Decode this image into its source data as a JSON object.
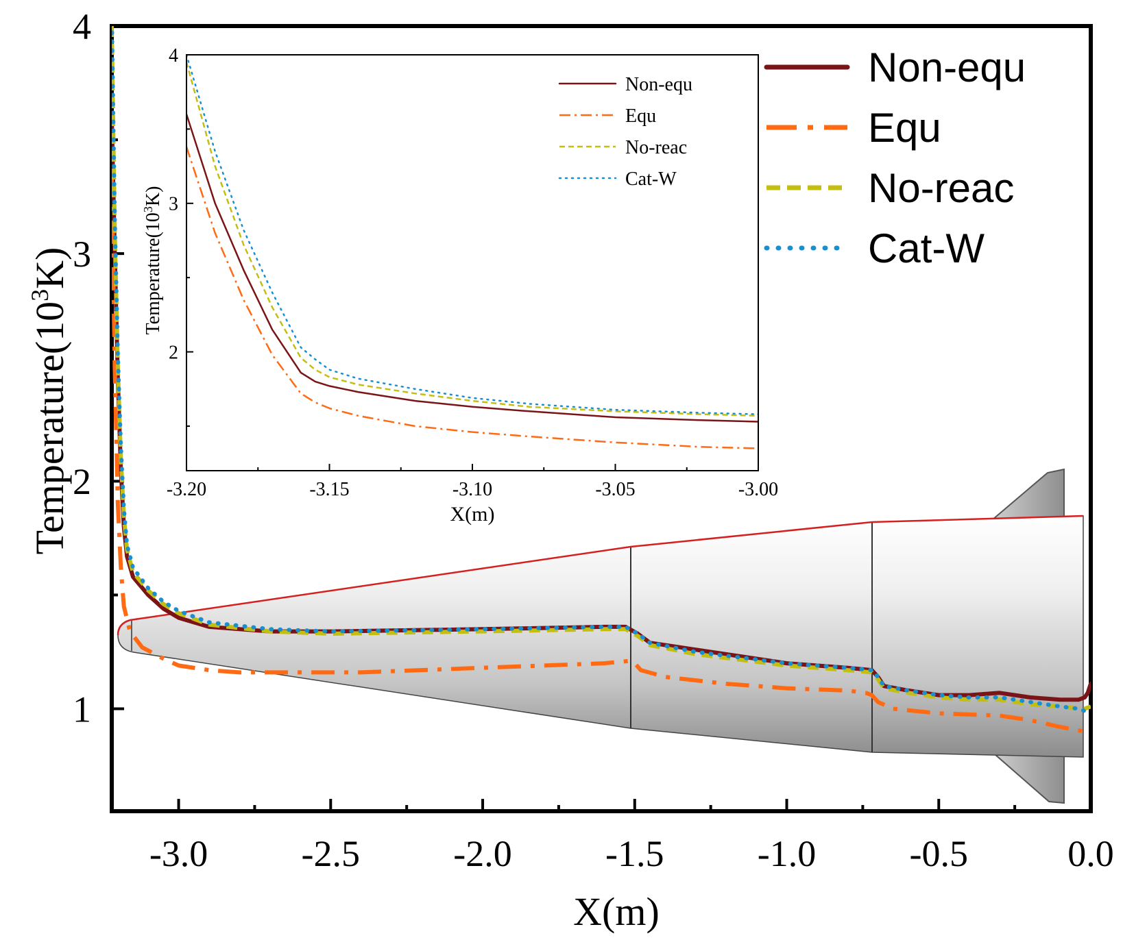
{
  "chart_data": [
    {
      "type": "line",
      "xlabel": "X(m)",
      "ylabel_main": "Temperature(10",
      "ylabel_sup": "3",
      "ylabel_end": "K)",
      "xlim": [
        -3.22,
        0.0
      ],
      "ylim": [
        0.55,
        4.0
      ],
      "xticks": [
        -3.0,
        -2.5,
        -2.0,
        -1.5,
        -1.0,
        -0.5,
        0.0
      ],
      "xtick_labels": [
        "-3.0",
        "-2.5",
        "-2.0",
        "-1.5",
        "-1.0",
        "-0.5",
        "0.0"
      ],
      "yticks": [
        1,
        2,
        3,
        4
      ],
      "ytick_labels": [
        "1",
        "2",
        "3",
        "4"
      ],
      "legend_position": "top-right",
      "series": [
        {
          "name": "Non-equ",
          "color": "#7b1416",
          "x": [
            -3.22,
            -3.21,
            -3.2,
            -3.19,
            -3.18,
            -3.17,
            -3.15,
            -3.1,
            -3.05,
            -3.0,
            -2.9,
            -2.7,
            -2.5,
            -2.0,
            -1.6,
            -1.53,
            -1.49,
            -1.45,
            -1.3,
            -1.0,
            -0.8,
            -0.72,
            -0.7,
            -0.68,
            -0.6,
            -0.5,
            -0.4,
            -0.3,
            -0.2,
            -0.1,
            -0.04,
            -0.02,
            -0.01,
            0.0
          ],
          "y": [
            3.6,
            3.0,
            2.45,
            2.05,
            1.8,
            1.67,
            1.58,
            1.5,
            1.44,
            1.4,
            1.36,
            1.34,
            1.34,
            1.35,
            1.36,
            1.36,
            1.33,
            1.29,
            1.26,
            1.2,
            1.18,
            1.17,
            1.14,
            1.1,
            1.08,
            1.06,
            1.06,
            1.07,
            1.05,
            1.04,
            1.04,
            1.05,
            1.07,
            1.11
          ]
        },
        {
          "name": "Equ",
          "color": "#ff6a13",
          "x": [
            -3.22,
            -3.21,
            -3.2,
            -3.19,
            -3.18,
            -3.16,
            -3.12,
            -3.05,
            -3.0,
            -2.9,
            -2.8,
            -2.6,
            -2.4,
            -2.0,
            -1.6,
            -1.52,
            -1.5,
            -1.48,
            -1.4,
            -1.2,
            -1.0,
            -0.8,
            -0.74,
            -0.72,
            -0.7,
            -0.65,
            -0.5,
            -0.3,
            -0.2,
            -0.1,
            -0.02,
            0.0
          ],
          "y": [
            3.35,
            2.5,
            1.9,
            1.62,
            1.45,
            1.34,
            1.27,
            1.22,
            1.19,
            1.17,
            1.16,
            1.16,
            1.16,
            1.18,
            1.2,
            1.21,
            1.2,
            1.17,
            1.14,
            1.11,
            1.09,
            1.08,
            1.07,
            1.06,
            1.03,
            1.0,
            0.98,
            0.97,
            0.95,
            0.92,
            0.9,
            0.89
          ]
        },
        {
          "name": "No-reac",
          "color": "#c4bd12",
          "x": [
            -3.22,
            -3.21,
            -3.2,
            -3.19,
            -3.18,
            -3.17,
            -3.15,
            -3.1,
            -3.05,
            -3.0,
            -2.9,
            -2.7,
            -2.5,
            -2.0,
            -1.6,
            -1.53,
            -1.49,
            -1.45,
            -1.3,
            -1.0,
            -0.8,
            -0.72,
            -0.7,
            -0.68,
            -0.6,
            -0.5,
            -0.4,
            -0.3,
            -0.2,
            -0.1,
            -0.04,
            -0.02,
            0.0
          ],
          "y": [
            4.0,
            3.1,
            2.5,
            2.1,
            1.85,
            1.7,
            1.6,
            1.52,
            1.46,
            1.42,
            1.37,
            1.34,
            1.33,
            1.34,
            1.35,
            1.35,
            1.32,
            1.28,
            1.24,
            1.19,
            1.17,
            1.16,
            1.13,
            1.09,
            1.07,
            1.05,
            1.04,
            1.04,
            1.02,
            1.01,
            1.0,
            1.0,
            1.01
          ]
        },
        {
          "name": "Cat-W",
          "color": "#1a8fcf",
          "x": [
            -3.22,
            -3.21,
            -3.2,
            -3.19,
            -3.18,
            -3.17,
            -3.15,
            -3.1,
            -3.05,
            -3.0,
            -2.9,
            -2.7,
            -2.5,
            -2.0,
            -1.6,
            -1.53,
            -1.49,
            -1.45,
            -1.3,
            -1.0,
            -0.8,
            -0.72,
            -0.7,
            -0.68,
            -0.6,
            -0.5,
            -0.4,
            -0.3,
            -0.2,
            -0.1,
            -0.04,
            -0.02,
            0.0
          ],
          "y": [
            4.05,
            3.15,
            2.55,
            2.15,
            1.88,
            1.72,
            1.62,
            1.53,
            1.47,
            1.43,
            1.38,
            1.35,
            1.34,
            1.35,
            1.36,
            1.36,
            1.33,
            1.29,
            1.25,
            1.2,
            1.18,
            1.17,
            1.14,
            1.1,
            1.08,
            1.06,
            1.05,
            1.05,
            1.03,
            1.01,
            1.0,
            0.99,
            1.0
          ]
        }
      ]
    },
    {
      "type": "line",
      "xlabel": "X(m)",
      "ylabel_main": "Temperature(10",
      "ylabel_sup": "3",
      "ylabel_end": "K)",
      "xlim": [
        -3.2,
        -3.0
      ],
      "ylim": [
        1.2,
        4.0
      ],
      "xticks": [
        -3.2,
        -3.15,
        -3.1,
        -3.05,
        -3.0
      ],
      "xtick_labels": [
        "-3.20",
        "-3.15",
        "-3.10",
        "-3.05",
        "-3.00"
      ],
      "yticks": [
        2,
        3,
        4
      ],
      "ytick_labels": [
        "2",
        "3",
        "4"
      ],
      "legend_position": "top-right",
      "series": [
        {
          "name": "Non-equ",
          "color": "#7b1416",
          "x": [
            -3.2,
            -3.19,
            -3.18,
            -3.17,
            -3.16,
            -3.155,
            -3.15,
            -3.14,
            -3.12,
            -3.1,
            -3.08,
            -3.05,
            -3.02,
            -3.0
          ],
          "y": [
            3.6,
            3.0,
            2.55,
            2.15,
            1.86,
            1.8,
            1.77,
            1.73,
            1.67,
            1.63,
            1.6,
            1.56,
            1.54,
            1.53
          ]
        },
        {
          "name": "Equ",
          "color": "#ff6a13",
          "x": [
            -3.2,
            -3.19,
            -3.18,
            -3.17,
            -3.16,
            -3.155,
            -3.15,
            -3.14,
            -3.12,
            -3.1,
            -3.08,
            -3.05,
            -3.02,
            -3.0
          ],
          "y": [
            3.38,
            2.8,
            2.35,
            1.98,
            1.72,
            1.66,
            1.62,
            1.57,
            1.5,
            1.46,
            1.43,
            1.39,
            1.36,
            1.35
          ]
        },
        {
          "name": "No-reac",
          "color": "#c4bd12",
          "x": [
            -3.2,
            -3.19,
            -3.18,
            -3.17,
            -3.16,
            -3.155,
            -3.15,
            -3.14,
            -3.12,
            -3.1,
            -3.08,
            -3.05,
            -3.02,
            -3.0
          ],
          "y": [
            3.95,
            3.25,
            2.72,
            2.3,
            1.96,
            1.88,
            1.83,
            1.78,
            1.72,
            1.67,
            1.63,
            1.6,
            1.58,
            1.57
          ]
        },
        {
          "name": "Cat-W",
          "color": "#1a8fcf",
          "x": [
            -3.2,
            -3.19,
            -3.18,
            -3.17,
            -3.16,
            -3.155,
            -3.15,
            -3.14,
            -3.12,
            -3.1,
            -3.08,
            -3.05,
            -3.02,
            -3.0
          ],
          "y": [
            4.0,
            3.35,
            2.82,
            2.4,
            2.03,
            1.95,
            1.88,
            1.82,
            1.75,
            1.69,
            1.65,
            1.61,
            1.59,
            1.58
          ]
        }
      ]
    }
  ],
  "vehicle": {
    "outline_color": "#d42020",
    "body_gradient": [
      "#ffffff",
      "#d8d8d8",
      "#8a8a8a"
    ]
  }
}
